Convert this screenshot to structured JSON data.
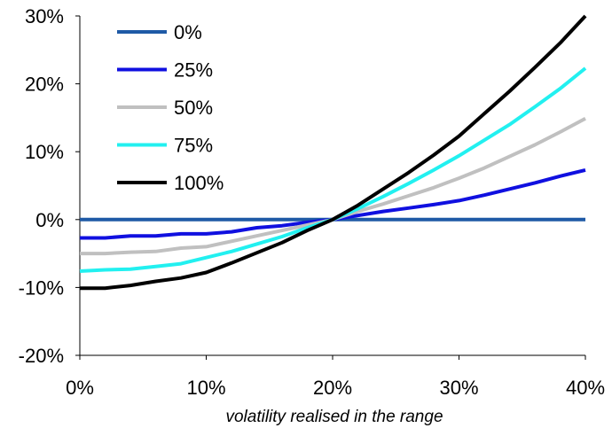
{
  "chart_data": {
    "type": "line",
    "title": "",
    "xlabel": "volatility realised in the range",
    "ylabel": "",
    "xlim": [
      0,
      40
    ],
    "ylim": [
      -20,
      30
    ],
    "x_ticks": [
      0,
      10,
      20,
      30,
      40
    ],
    "x_tick_labels": [
      "0%",
      "10%",
      "20%",
      "30%",
      "40%"
    ],
    "y_ticks": [
      30,
      20,
      10,
      0,
      -10,
      -20
    ],
    "y_tick_labels": [
      "30%",
      "20%",
      "10%",
      "0%",
      "-10%",
      "-20%"
    ],
    "grid": false,
    "legend_position": "top-left",
    "x": [
      0,
      2,
      4,
      6,
      8,
      10,
      12,
      14,
      16,
      18,
      20,
      22,
      24,
      26,
      28,
      30,
      32,
      34,
      36,
      38,
      40
    ],
    "series": [
      {
        "name": "0%",
        "color": "#1f5aa6",
        "values": [
          0,
          0,
          0,
          0,
          0,
          0,
          0,
          0,
          0,
          0,
          0,
          0,
          0,
          0,
          0,
          0,
          0,
          0,
          0,
          0,
          0
        ]
      },
      {
        "name": "25%",
        "color": "#1010e0",
        "values": [
          -2.7,
          -2.7,
          -2.4,
          -2.4,
          -2.1,
          -2.1,
          -1.8,
          -1.2,
          -0.9,
          -0.4,
          0,
          0.6,
          1.2,
          1.7,
          2.2,
          2.8,
          3.6,
          4.5,
          5.4,
          6.4,
          7.3
        ]
      },
      {
        "name": "50%",
        "color": "#c0c0c0",
        "values": [
          -5.0,
          -5.0,
          -4.8,
          -4.7,
          -4.2,
          -4.0,
          -3.2,
          -2.4,
          -1.6,
          -0.8,
          0,
          1.2,
          2.3,
          3.5,
          4.7,
          6.1,
          7.6,
          9.3,
          11.0,
          12.9,
          14.9
        ]
      },
      {
        "name": "75%",
        "color": "#22f0f0",
        "values": [
          -7.6,
          -7.4,
          -7.3,
          -6.9,
          -6.5,
          -5.6,
          -4.7,
          -3.6,
          -2.5,
          -1.2,
          0,
          1.6,
          3.4,
          5.3,
          7.3,
          9.4,
          11.7,
          14.0,
          16.6,
          19.3,
          22.3
        ]
      },
      {
        "name": "100%",
        "color": "#000000",
        "values": [
          -10.1,
          -10.1,
          -9.7,
          -9.1,
          -8.6,
          -7.8,
          -6.4,
          -4.9,
          -3.4,
          -1.6,
          0,
          2.1,
          4.5,
          6.9,
          9.5,
          12.3,
          15.6,
          18.9,
          22.4,
          26.0,
          30.0
        ]
      }
    ]
  }
}
